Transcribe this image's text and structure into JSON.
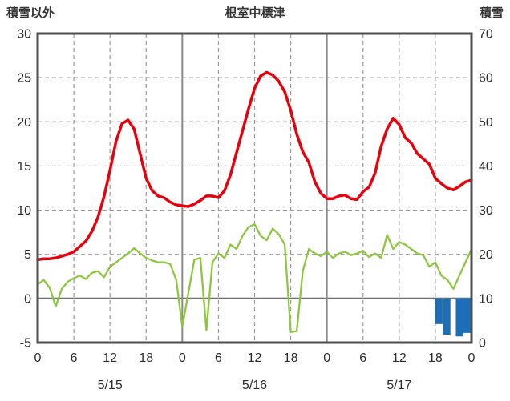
{
  "chart_data": {
    "type": "line",
    "title": "根室中標津",
    "left_axis": {
      "label": "積雪以外",
      "min": -5,
      "max": 30,
      "ticks": [
        30,
        25,
        20,
        15,
        10,
        5,
        0,
        -5
      ]
    },
    "right_axis": {
      "label": "積雪",
      "min": 0,
      "max": 70,
      "ticks": [
        70,
        60,
        50,
        40,
        30,
        20,
        10,
        0
      ]
    },
    "x_axis": {
      "hours_total": 72,
      "x_step_hours": 1,
      "tick_step": 6,
      "tick_labels": [
        "0",
        "6",
        "12",
        "18",
        "0",
        "6",
        "12",
        "18",
        "0",
        "6",
        "12",
        "18",
        "0"
      ],
      "day_labels": [
        "5/15",
        "5/16",
        "5/17"
      ],
      "day_boundaries": [
        24,
        48
      ]
    },
    "grid": "on",
    "colors": {
      "grid": "#9a9a9a",
      "zero_line": "#6e6e6e",
      "day_line": "#8a8a8a",
      "border": "#4f4f4f",
      "text": "#2b2b2b"
    },
    "series": [
      {
        "name": "temperature",
        "color": "#e8000d",
        "width": 3.5,
        "values": [
          4.4,
          4.5,
          4.5,
          4.6,
          4.8,
          5.0,
          5.3,
          5.9,
          6.5,
          7.6,
          9.2,
          11.5,
          14.5,
          17.8,
          19.8,
          20.2,
          19.2,
          16.4,
          13.6,
          12.2,
          11.6,
          11.4,
          10.9,
          10.6,
          10.5,
          10.4,
          10.7,
          11.1,
          11.6,
          11.6,
          11.4,
          12.2,
          14.0,
          16.5,
          19.0,
          21.5,
          23.8,
          25.2,
          25.6,
          25.3,
          24.6,
          23.4,
          21.3,
          18.6,
          16.6,
          15.4,
          13.2,
          11.9,
          11.3,
          11.3,
          11.6,
          11.7,
          11.3,
          11.2,
          12.1,
          12.6,
          14.2,
          17.2,
          19.2,
          20.4,
          19.7,
          18.2,
          17.6,
          16.4,
          15.8,
          15.2,
          13.6,
          13.0,
          12.5,
          12.3,
          12.7,
          13.2,
          13.4
        ]
      },
      {
        "name": "green-series",
        "color": "#8dc63f",
        "width": 2.3,
        "values": [
          1.6,
          2.1,
          1.2,
          -0.9,
          1.1,
          1.9,
          2.3,
          2.6,
          2.2,
          2.9,
          3.1,
          2.4,
          3.6,
          4.1,
          4.6,
          5.1,
          5.7,
          5.1,
          4.6,
          4.3,
          4.1,
          4.1,
          3.9,
          2.1,
          -3.2,
          0.6,
          4.4,
          4.6,
          -3.6,
          4.1,
          5.1,
          4.6,
          6.1,
          5.6,
          7.1,
          8.1,
          8.4,
          7.1,
          6.6,
          7.9,
          7.3,
          6.1,
          -3.8,
          -3.7,
          3.1,
          5.6,
          5.1,
          4.8,
          5.3,
          4.6,
          5.1,
          5.3,
          4.9,
          5.1,
          5.4,
          4.7,
          5.1,
          4.6,
          7.2,
          5.6,
          6.4,
          6.1,
          5.6,
          5.1,
          4.9,
          3.6,
          4.1,
          2.6,
          2.1,
          1.1,
          2.6,
          4.1,
          5.6
        ]
      }
    ],
    "bars": {
      "name": "precipitation",
      "color": "#1c6eb8",
      "items": [
        {
          "hour": 66.6,
          "value": -2.9
        },
        {
          "hour": 67.9,
          "value": -4.1
        },
        {
          "hour": 70.0,
          "value": -4.3
        },
        {
          "hour": 71.2,
          "value": -3.9
        }
      ]
    }
  }
}
